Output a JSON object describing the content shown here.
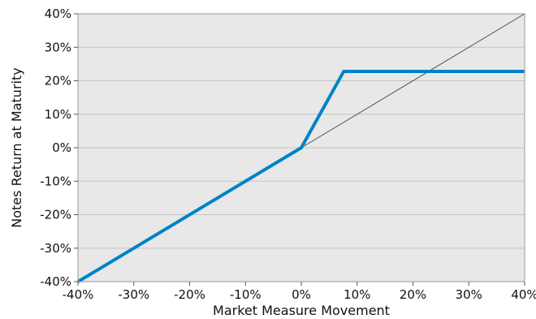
{
  "chart_data": {
    "type": "line",
    "title": "",
    "xlabel": "Market Measure Movement",
    "ylabel": "Notes Return at Maturity",
    "xlim": [
      -40,
      40
    ],
    "ylim": [
      -40,
      40
    ],
    "x_ticks": [
      -40,
      -30,
      -20,
      -10,
      0,
      10,
      20,
      30,
      40
    ],
    "y_ticks": [
      -40,
      -30,
      -20,
      -10,
      0,
      10,
      20,
      30,
      40
    ],
    "x_tick_labels": [
      "-40%",
      "-30%",
      "-20%",
      "-10%",
      "0%",
      "10%",
      "20%",
      "30%",
      "40%"
    ],
    "y_tick_labels": [
      "-40%",
      "-30%",
      "-20%",
      "-10%",
      "0%",
      "10%",
      "20%",
      "30%",
      "40%"
    ],
    "grid": "horizontal",
    "background": "#e8e8e8",
    "series": [
      {
        "color": "#0082c8",
        "style": "solid-thick",
        "x": [
          -40,
          0,
          7.6,
          40
        ],
        "y": [
          -40,
          0,
          22.8,
          22.8
        ]
      },
      {
        "color": "#444444",
        "style": "thin",
        "x": [
          0,
          40
        ],
        "y": [
          0,
          40
        ]
      }
    ]
  }
}
